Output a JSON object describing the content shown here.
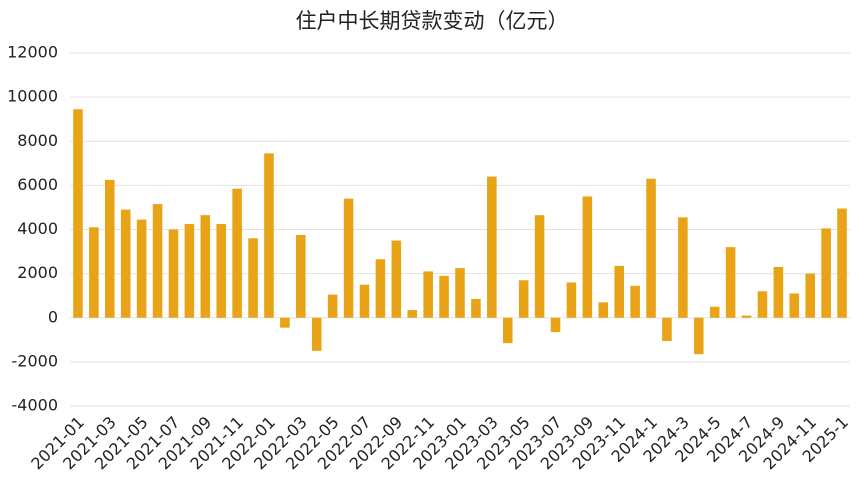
{
  "chart_data": {
    "type": "bar",
    "title": "住户中长期贷款变动（亿元）",
    "categories": [
      "2021-01",
      null,
      "2021-03",
      null,
      "2021-05",
      null,
      "2021-07",
      null,
      "2021-09",
      null,
      "2021-11",
      null,
      "2022-01",
      null,
      "2022-03",
      null,
      "2022-05",
      null,
      "2022-07",
      null,
      "2022-09",
      null,
      "2022-11",
      null,
      "2023-01",
      null,
      "2023-03",
      null,
      "2023-05",
      null,
      "2023-07",
      null,
      "2023-09",
      null,
      "2023-11",
      null,
      "2024-1",
      null,
      "2024-3",
      null,
      "2024-5",
      null,
      "2024-7",
      null,
      "2024-9",
      null,
      "2024-11",
      null,
      "2025-1"
    ],
    "values": [
      9450,
      4100,
      6250,
      4900,
      4450,
      5150,
      4000,
      4250,
      4650,
      4250,
      5850,
      3600,
      7450,
      -450,
      3750,
      -1500,
      1050,
      5400,
      1500,
      2650,
      3500,
      350,
      2100,
      1900,
      2250,
      850,
      6400,
      -1150,
      1700,
      4650,
      -650,
      1600,
      5500,
      700,
      2350,
      1450,
      6300,
      -1050,
      4550,
      -1650,
      500,
      3200,
      100,
      1200,
      2300,
      1100,
      2000,
      4050,
      4950
    ],
    "color": "#e8a317",
    "ylim": [
      -4000,
      12000
    ],
    "yticks": [
      -4000,
      -2000,
      0,
      2000,
      4000,
      6000,
      8000,
      10000,
      12000
    ],
    "grid": true
  }
}
